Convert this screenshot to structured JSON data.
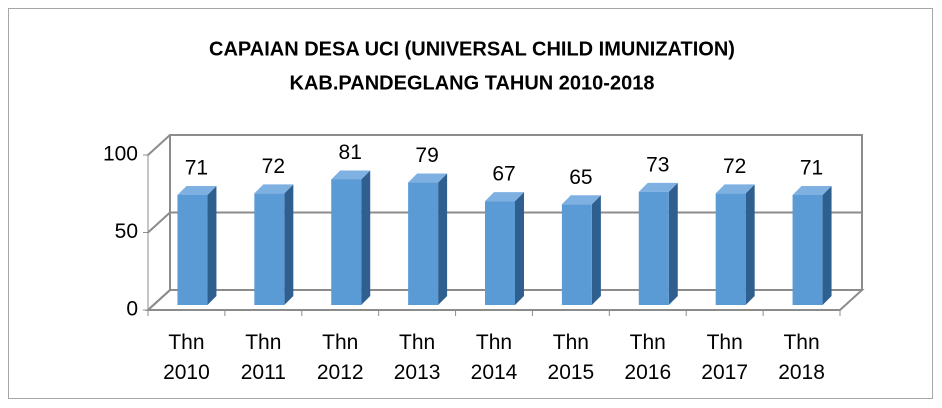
{
  "chart_data": {
    "type": "bar3d",
    "title": [
      "CAPAIAN DESA UCI (UNIVERSAL CHILD IMUNIZATION)",
      "KAB.PANDEGLANG TAHUN 2010-2018"
    ],
    "categories": [
      "Thn 2010",
      "Thn 2011",
      "Thn 2012",
      "Thn 2013",
      "Thn 2014",
      "Thn 2015",
      "Thn 2016",
      "Thn 2017",
      "Thn 2018"
    ],
    "values": [
      71,
      72,
      81,
      79,
      67,
      65,
      73,
      72,
      71
    ],
    "color": "#5b9bd5",
    "ylim": [
      0,
      100
    ],
    "yticks": [
      0,
      50,
      100
    ],
    "grid": true
  }
}
